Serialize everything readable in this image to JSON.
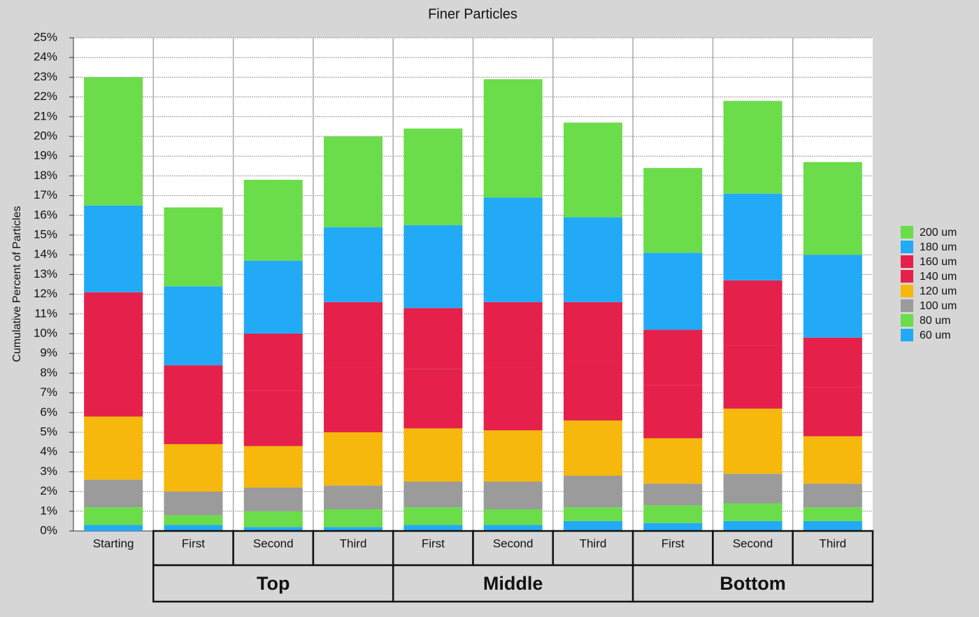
{
  "chart_data": {
    "type": "stacked_bar",
    "title": "Finer Particles",
    "y_label": "Cumulative Percent of Particles",
    "categories": [
      "Starting",
      "First",
      "Second",
      "Third",
      "First",
      "Second",
      "Third",
      "First",
      "Second",
      "Third"
    ],
    "groups": [
      null,
      "Top",
      "Top",
      "Top",
      "Middle",
      "Middle",
      "Middle",
      "Bottom",
      "Bottom",
      "Bottom"
    ],
    "series": [
      {
        "name": "60 um",
        "color": "#22aaf7",
        "values": [
          0.3,
          0.3,
          0.2,
          0.2,
          0.3,
          0.3,
          0.5,
          0.4,
          0.5,
          0.5
        ]
      },
      {
        "name": "80 um",
        "color": "#6bdc4a",
        "values": [
          0.9,
          0.5,
          0.8,
          0.9,
          0.9,
          0.8,
          0.7,
          0.9,
          0.9,
          0.7
        ]
      },
      {
        "name": "100 um",
        "color": "#9b9b9b",
        "values": [
          1.4,
          1.2,
          1.2,
          1.2,
          1.3,
          1.4,
          1.6,
          1.1,
          1.5,
          1.2
        ]
      },
      {
        "name": "120 um",
        "color": "#f6b80c",
        "values": [
          3.2,
          2.4,
          2.1,
          2.7,
          2.7,
          2.6,
          2.8,
          2.3,
          3.3,
          2.4
        ]
      },
      {
        "name": "140 um",
        "color": "#e5204b",
        "values": [
          3.1,
          2.0,
          2.8,
          3.3,
          3.0,
          3.2,
          3.0,
          2.7,
          3.2,
          2.5
        ]
      },
      {
        "name": "160 um",
        "color": "#e5204b",
        "values": [
          3.2,
          2.0,
          2.9,
          3.3,
          3.1,
          3.3,
          3.0,
          2.8,
          3.3,
          2.5
        ]
      },
      {
        "name": "180 um",
        "color": "#22aaf7",
        "values": [
          4.4,
          4.0,
          3.7,
          3.8,
          4.2,
          5.3,
          4.3,
          3.9,
          4.4,
          4.2
        ]
      },
      {
        "name": "200 um",
        "color": "#6bdc4a",
        "values": [
          6.5,
          4.0,
          4.1,
          4.6,
          4.9,
          6.0,
          4.8,
          4.3,
          4.7,
          4.7
        ]
      }
    ],
    "ylim": [
      0,
      25
    ],
    "yticks": [
      {
        "value": 0,
        "label": "0%"
      },
      {
        "value": 1,
        "label": "1%"
      },
      {
        "value": 2,
        "label": "2%"
      },
      {
        "value": 3,
        "label": "3%"
      },
      {
        "value": 4,
        "label": "4%"
      },
      {
        "value": 5,
        "label": "5%"
      },
      {
        "value": 6,
        "label": "6%"
      },
      {
        "value": 7,
        "label": "7%"
      },
      {
        "value": 8,
        "label": "8%"
      },
      {
        "value": 9,
        "label": "9%"
      },
      {
        "value": 10,
        "label": "10%"
      },
      {
        "value": 11,
        "label": "11%"
      },
      {
        "value": 12,
        "label": "12%"
      },
      {
        "value": 13,
        "label": "13%"
      },
      {
        "value": 14,
        "label": "14%"
      },
      {
        "value": 15,
        "label": "15%"
      },
      {
        "value": 16,
        "label": "16%"
      },
      {
        "value": 17,
        "label": "17%"
      },
      {
        "value": 18,
        "label": "18%"
      },
      {
        "value": 19,
        "label": "19%"
      },
      {
        "value": 20,
        "label": "20%"
      },
      {
        "value": 21,
        "label": "21%"
      },
      {
        "value": 22,
        "label": "22%"
      },
      {
        "value": 23,
        "label": "23%"
      },
      {
        "value": 24,
        "label": "24%"
      },
      {
        "value": 25,
        "label": "25%"
      }
    ],
    "grid": true,
    "legend": "right"
  }
}
